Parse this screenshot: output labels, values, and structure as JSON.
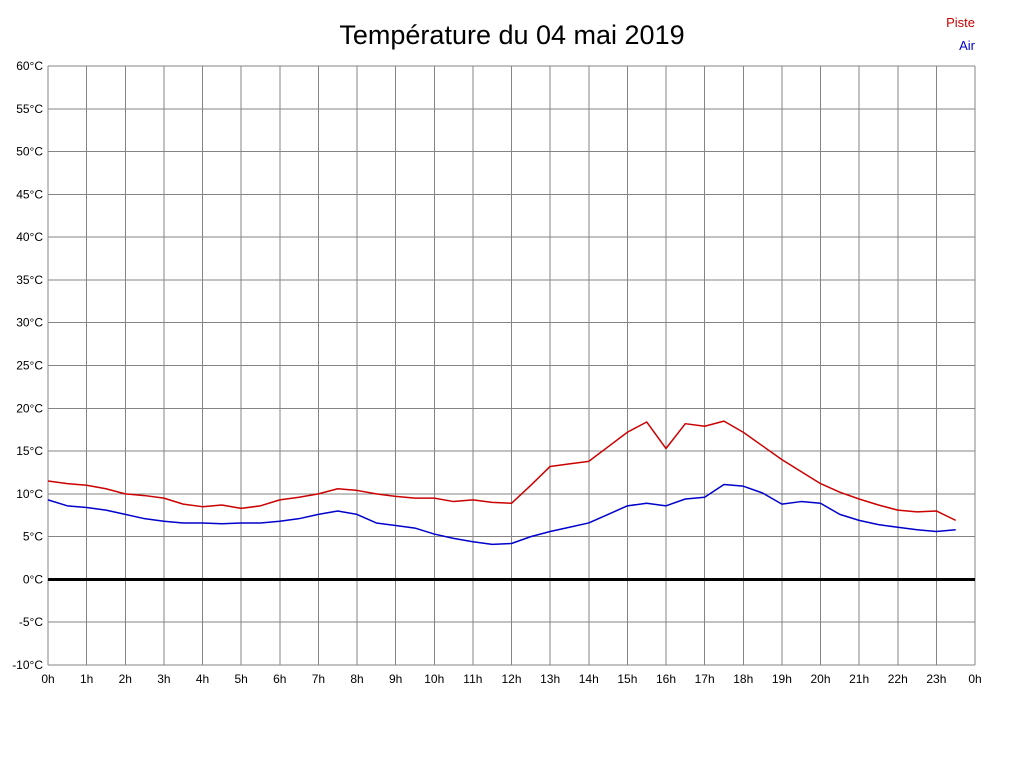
{
  "title": "Température du 04 mai 2019",
  "legend": {
    "piste": {
      "label": "Piste",
      "color": "#cc0000"
    },
    "air": {
      "label": "Air",
      "color": "#0000cc"
    }
  },
  "chart_data": {
    "type": "line",
    "title": "Température du 04 mai 2019",
    "xlabel": "",
    "ylabel": "",
    "xlim": [
      0,
      24
    ],
    "ylim": [
      -10,
      60
    ],
    "grid": true,
    "grid_color": "#858585",
    "zero_line_color": "#000000",
    "legend_position": "top-right",
    "x_tick_labels": [
      "0h",
      "1h",
      "2h",
      "3h",
      "4h",
      "5h",
      "6h",
      "7h",
      "8h",
      "9h",
      "10h",
      "11h",
      "12h",
      "13h",
      "14h",
      "15h",
      "16h",
      "17h",
      "18h",
      "19h",
      "20h",
      "21h",
      "22h",
      "23h",
      "0h"
    ],
    "y_tick_labels": [
      "60°C",
      "55°C",
      "50°C",
      "45°C",
      "40°C",
      "35°C",
      "30°C",
      "25°C",
      "20°C",
      "15°C",
      "10°C",
      "5°C",
      "0°C",
      "-5°C",
      "-10°C"
    ],
    "x": [
      0,
      0.5,
      1,
      1.5,
      2,
      2.5,
      3,
      3.5,
      4,
      4.5,
      5,
      5.5,
      6,
      6.5,
      7,
      7.5,
      8,
      8.5,
      9,
      9.5,
      10,
      10.5,
      11,
      11.5,
      12,
      12.5,
      13,
      13.5,
      14,
      14.5,
      15,
      15.5,
      16,
      16.5,
      17,
      17.5,
      18,
      18.5,
      19,
      19.5,
      20,
      20.5,
      21,
      21.5,
      22,
      22.5,
      23,
      23.5
    ],
    "series": [
      {
        "name": "Piste",
        "color": "#cc0000",
        "values": [
          11.5,
          11.2,
          11.0,
          10.6,
          10.0,
          9.8,
          9.5,
          8.8,
          8.5,
          8.7,
          8.3,
          8.6,
          9.3,
          9.6,
          10.0,
          10.6,
          10.4,
          10.0,
          9.7,
          9.5,
          9.5,
          9.1,
          9.3,
          9.0,
          8.9,
          11.0,
          13.2,
          13.5,
          13.8,
          15.5,
          17.2,
          18.4,
          15.3,
          18.2,
          17.9,
          18.5,
          17.2,
          15.6,
          14.0,
          12.6,
          11.2,
          10.2,
          9.4,
          8.7,
          8.1,
          7.9,
          8.0,
          6.9
        ]
      },
      {
        "name": "Air",
        "color": "#0000cc",
        "values": [
          9.3,
          8.6,
          8.4,
          8.1,
          7.6,
          7.1,
          6.8,
          6.6,
          6.6,
          6.5,
          6.6,
          6.6,
          6.8,
          7.1,
          7.6,
          8.0,
          7.6,
          6.6,
          6.3,
          6.0,
          5.3,
          4.8,
          4.4,
          4.1,
          4.2,
          5.0,
          5.6,
          6.1,
          6.6,
          7.6,
          8.6,
          8.9,
          8.6,
          9.4,
          9.6,
          11.1,
          10.9,
          10.1,
          8.8,
          9.1,
          8.9,
          7.6,
          6.9,
          6.4,
          6.1,
          5.8,
          5.6,
          5.8
        ]
      }
    ]
  }
}
